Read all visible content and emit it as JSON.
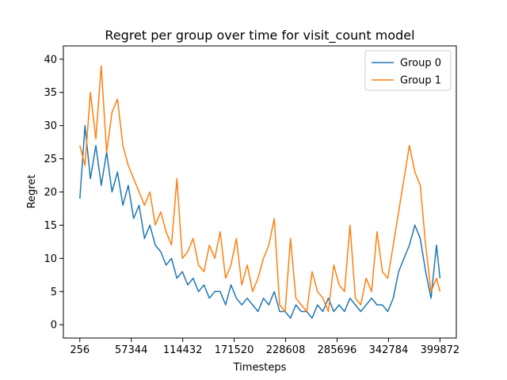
{
  "chart_data": {
    "type": "line",
    "title": "Regret per group over time for visit_count model",
    "xlabel": "Timesteps",
    "ylabel": "Regret",
    "xlim": [
      -18000,
      418000
    ],
    "ylim": [
      -2,
      42
    ],
    "xticks": [
      256,
      57344,
      114432,
      171520,
      228608,
      285696,
      342784,
      399872
    ],
    "xtick_labels": [
      "256",
      "57344",
      "114432",
      "171520",
      "228608",
      "285696",
      "342784",
      "399872"
    ],
    "yticks": [
      0,
      5,
      10,
      15,
      20,
      25,
      30,
      35,
      40
    ],
    "ytick_labels": [
      "0",
      "5",
      "10",
      "15",
      "20",
      "25",
      "30",
      "35",
      "40"
    ],
    "grid": false,
    "legend_position": "upper-right",
    "series": [
      {
        "name": "Group 0",
        "color": "#1f77b4",
        "x": [
          256,
          6000,
          12000,
          18000,
          24000,
          30000,
          36000,
          42000,
          48000,
          54000,
          60000,
          66000,
          72000,
          78000,
          84000,
          90000,
          96000,
          102000,
          108000,
          114000,
          120000,
          126000,
          132000,
          138000,
          144000,
          150000,
          156000,
          162000,
          168000,
          174000,
          180000,
          186000,
          192000,
          198000,
          204000,
          210000,
          216000,
          222000,
          228000,
          234000,
          240000,
          246000,
          252000,
          258000,
          264000,
          270000,
          276000,
          282000,
          288000,
          294000,
          300000,
          306000,
          312000,
          318000,
          324000,
          330000,
          336000,
          342000,
          348000,
          354000,
          360000,
          366000,
          372000,
          378000,
          384000,
          390000,
          396000,
          399872
        ],
        "values": [
          19,
          30,
          22,
          27,
          21,
          26,
          20,
          23,
          18,
          21,
          16,
          18,
          13,
          15,
          12,
          11,
          9,
          10,
          7,
          8,
          6,
          7,
          5,
          6,
          4,
          5,
          5,
          3,
          6,
          4,
          3,
          4,
          3,
          2,
          4,
          3,
          5,
          2,
          2,
          1,
          3,
          2,
          2,
          1,
          3,
          2,
          4,
          2,
          3,
          2,
          4,
          3,
          2,
          3,
          4,
          3,
          3,
          2,
          4,
          8,
          10,
          12,
          15,
          13,
          8,
          4,
          12,
          7
        ]
      },
      {
        "name": "Group 1",
        "color": "#ff7f0e",
        "x": [
          256,
          6000,
          12000,
          18000,
          24000,
          30000,
          36000,
          42000,
          48000,
          54000,
          60000,
          66000,
          72000,
          78000,
          84000,
          90000,
          96000,
          102000,
          108000,
          114000,
          120000,
          126000,
          132000,
          138000,
          144000,
          150000,
          156000,
          162000,
          168000,
          174000,
          180000,
          186000,
          192000,
          198000,
          204000,
          210000,
          216000,
          222000,
          228000,
          234000,
          240000,
          246000,
          252000,
          258000,
          264000,
          270000,
          276000,
          282000,
          288000,
          294000,
          300000,
          306000,
          312000,
          318000,
          324000,
          330000,
          336000,
          342000,
          348000,
          354000,
          360000,
          366000,
          372000,
          378000,
          384000,
          390000,
          396000,
          399872
        ],
        "values": [
          27,
          24,
          35,
          28,
          39,
          26,
          32,
          34,
          27,
          24,
          22,
          20,
          18,
          20,
          15,
          17,
          14,
          12,
          22,
          10,
          11,
          13,
          9,
          8,
          12,
          10,
          14,
          7,
          9,
          13,
          6,
          9,
          5,
          7,
          10,
          12,
          16,
          3,
          2,
          13,
          4,
          3,
          2,
          8,
          5,
          4,
          2,
          9,
          6,
          5,
          15,
          4,
          3,
          7,
          5,
          14,
          8,
          7,
          12,
          17,
          22,
          27,
          23,
          21,
          12,
          5,
          7,
          5
        ]
      }
    ]
  }
}
